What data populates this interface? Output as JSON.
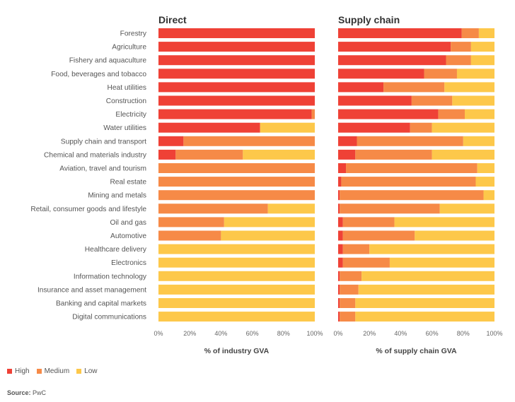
{
  "chart_data": {
    "type": "bar",
    "orientation": "horizontal",
    "stacked": true,
    "categories": [
      "Forestry",
      "Agriculture",
      "Fishery and aquaculture",
      "Food, beverages and tobacco",
      "Heat utilities",
      "Construction",
      "Electricity",
      "Water utilities",
      "Supply chain and transport",
      "Chemical and materials industry",
      "Aviation, travel and tourism",
      "Real estate",
      "Mining and metals",
      "Retail, consumer goods and lifestyle",
      "Oil and gas",
      "Automotive",
      "Healthcare delivery",
      "Electronics",
      "Information technology",
      "Insurance and asset management",
      "Banking and capital markets",
      "Digital communications"
    ],
    "legend": [
      {
        "name": "High",
        "color": "#ef4136"
      },
      {
        "name": "Medium",
        "color": "#f68a47"
      },
      {
        "name": "Low",
        "color": "#fdc84a"
      }
    ],
    "legend_position": "bottom-left",
    "grid": false,
    "xticks": [
      "0%",
      "20%",
      "40%",
      "60%",
      "80%",
      "100%"
    ],
    "panels": [
      {
        "title": "Direct",
        "xlabel": "% of industry GVA",
        "xlim": [
          0,
          100
        ],
        "series": [
          {
            "name": "High",
            "values": [
              100,
              100,
              100,
              100,
              100,
              100,
              98,
              65,
              16,
              11,
              0,
              0,
              0,
              0,
              0,
              0,
              0,
              0,
              0,
              0,
              0,
              0
            ]
          },
          {
            "name": "Medium",
            "values": [
              0,
              0,
              0,
              0,
              0,
              0,
              2,
              0,
              84,
              43,
              100,
              100,
              100,
              70,
              42,
              40,
              0,
              0,
              0,
              0,
              0,
              0
            ]
          },
          {
            "name": "Low",
            "values": [
              0,
              0,
              0,
              0,
              0,
              0,
              0,
              35,
              0,
              46,
              0,
              0,
              0,
              30,
              58,
              60,
              100,
              100,
              100,
              100,
              100,
              100
            ]
          }
        ]
      },
      {
        "title": "Supply chain",
        "xlabel": "% of supply chain GVA",
        "xlim": [
          0,
          100
        ],
        "series": [
          {
            "name": "High",
            "values": [
              79,
              72,
              69,
              55,
              29,
              47,
              64,
              46,
              12,
              11,
              5,
              2,
              1,
              1,
              3,
              3,
              3,
              3,
              1,
              1,
              1,
              1
            ]
          },
          {
            "name": "Medium",
            "values": [
              11,
              13,
              16,
              21,
              39,
              26,
              17,
              14,
              68,
              49,
              84,
              86,
              92,
              64,
              33,
              46,
              17,
              30,
              14,
              12,
              10,
              10
            ]
          },
          {
            "name": "Low",
            "values": [
              10,
              15,
              15,
              24,
              32,
              27,
              19,
              40,
              20,
              40,
              11,
              12,
              7,
              35,
              64,
              51,
              80,
              67,
              85,
              87,
              89,
              89
            ]
          }
        ]
      }
    ]
  },
  "source": {
    "label": "Source:",
    "text": "PwC"
  }
}
